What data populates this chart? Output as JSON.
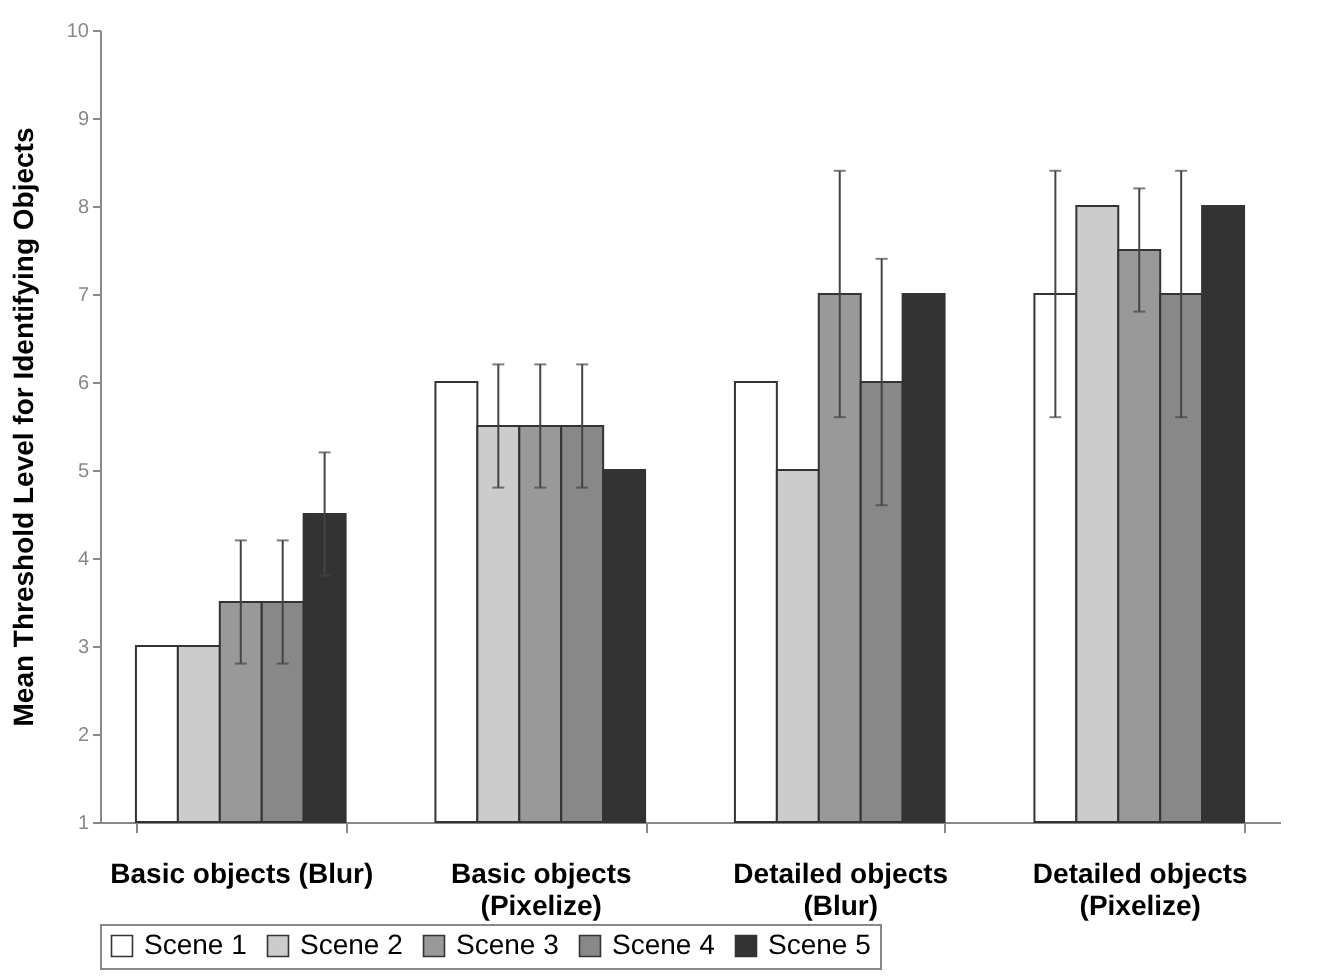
{
  "chart_data": {
    "type": "bar",
    "ylabel": "Mean Threshold Level for Identifying Objects",
    "categories": [
      "Basic objects (Blur)",
      "Basic objects (Pixelize)",
      "Detailed objects (Blur)",
      "Detailed objects (Pixelize)"
    ],
    "series": [
      {
        "name": "Scene 1",
        "color": "#ffffff",
        "values": [
          3,
          6,
          6,
          7
        ],
        "errors": [
          null,
          null,
          null,
          1.4
        ]
      },
      {
        "name": "Scene 2",
        "color": "#cccccc",
        "values": [
          3,
          5.5,
          5,
          8
        ],
        "errors": [
          null,
          0.7,
          null,
          null
        ]
      },
      {
        "name": "Scene 3",
        "color": "#999999",
        "values": [
          3.5,
          5.5,
          7,
          7.5
        ],
        "errors": [
          0.7,
          0.7,
          1.4,
          0.7
        ]
      },
      {
        "name": "Scene 4",
        "color": "#888888",
        "values": [
          3.5,
          5.5,
          6,
          7
        ],
        "errors": [
          0.7,
          0.7,
          1.4,
          1.4
        ]
      },
      {
        "name": "Scene 5",
        "color": "#333333",
        "values": [
          4.5,
          5,
          7,
          8
        ],
        "errors": [
          0.7,
          null,
          null,
          null
        ]
      }
    ],
    "ylim": [
      1,
      10
    ],
    "yticks": [
      1,
      2,
      3,
      4,
      5,
      6,
      7,
      8,
      9,
      10
    ],
    "grid": false,
    "legend": "bottom"
  }
}
